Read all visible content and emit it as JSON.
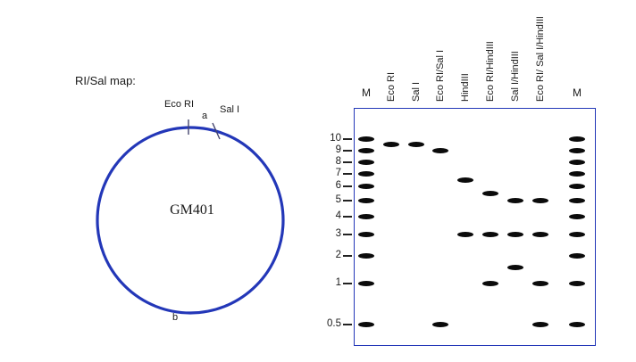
{
  "map_panel": {
    "title": "RI/Sal map:",
    "plasmid_name": "GM401",
    "ecori_site_label": "Eco RI",
    "sali_site_label": "Sal I",
    "segment_a_label": "a",
    "segment_b_label": "b"
  },
  "colors": {
    "plasmid_blue": "#2337b8",
    "gel_border_blue": "#2337b8",
    "band_black": "#0b0b0b",
    "tick_dark": "#222222"
  },
  "chart_data": {
    "type": "gel_electrophoresis",
    "ladder_kb": [
      10,
      9,
      8,
      7,
      6,
      5,
      4,
      3,
      2,
      1,
      0.5
    ],
    "lanes": [
      {
        "label": "M",
        "rotated_label": false,
        "bands_kb": [
          10,
          9,
          8,
          7,
          6,
          5,
          4,
          3,
          2,
          1,
          0.5
        ]
      },
      {
        "label": "Eco RI",
        "rotated_label": true,
        "bands_kb": [
          9.5
        ]
      },
      {
        "label": "Sal I",
        "rotated_label": true,
        "bands_kb": [
          9.5
        ]
      },
      {
        "label": "Eco RI/Sal I",
        "rotated_label": true,
        "bands_kb": [
          9,
          0.5
        ]
      },
      {
        "label": "HindIII",
        "rotated_label": true,
        "bands_kb": [
          6.5,
          3
        ]
      },
      {
        "label": "Eco RI/HindIII",
        "rotated_label": true,
        "bands_kb": [
          5.5,
          3,
          1
        ]
      },
      {
        "label": "Sal I/HindIII",
        "rotated_label": true,
        "bands_kb": [
          5,
          3,
          1.5
        ]
      },
      {
        "label": "Eco RI/ Sal I/HindIII",
        "rotated_label": true,
        "bands_kb": [
          5,
          3,
          1,
          0.5
        ]
      },
      {
        "label": "M",
        "rotated_label": false,
        "bands_kb": [
          10,
          9,
          8,
          7,
          6,
          5,
          4,
          3,
          2,
          1,
          0.5
        ]
      }
    ]
  }
}
